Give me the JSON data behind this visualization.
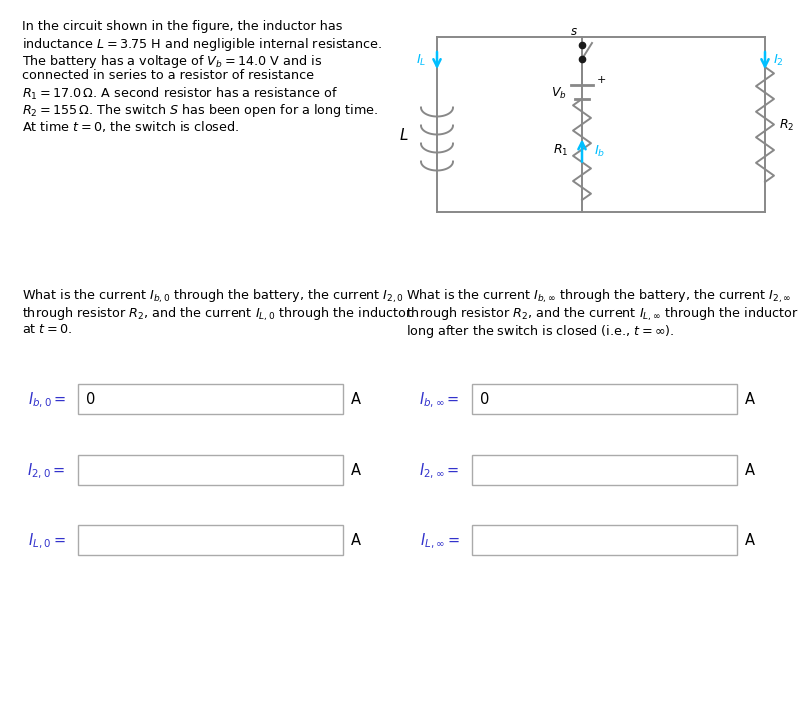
{
  "bg_color": "#ffffff",
  "problem_text_lines": [
    "In the circuit shown in the figure, the inductor has",
    "inductance $L = 3.75$ H and negligible internal resistance.",
    "The battery has a voltage of $V_b = 14.0$ V and is",
    "connected in series to a resistor of resistance",
    "$R_1 = 17.0\\,\\Omega$. A second resistor has a resistance of",
    "$R_2 = 155\\,\\Omega$. The switch $S$ has been open for a long time.",
    "At time $t = 0$, the switch is closed."
  ],
  "left_question_lines": [
    "What is the current $I_{b,0}$ through the battery, the current $I_{2,0}$",
    "through resistor $R_2$, and the current $I_{L,0}$ through the inductor",
    "at $t = 0$."
  ],
  "right_question_lines": [
    "What is the current $I_{b,\\infty}$ through the battery, the current $I_{2,\\infty}$",
    "through resistor $R_2$, and the current $I_{L,\\infty}$ through the inductor",
    "long after the switch is closed (i.e., $t = \\infty$)."
  ],
  "left_labels": [
    "$I_{b,0} =$",
    "$I_{2,0} =$",
    "$I_{L,0} =$"
  ],
  "right_labels": [
    "$I_{b,\\infty} =$",
    "$I_{2,\\infty} =$",
    "$I_{L,\\infty} =$"
  ],
  "left_prefilled": [
    "0",
    "",
    ""
  ],
  "right_prefilled": [
    "0",
    "",
    ""
  ],
  "unit": "A",
  "circuit_color": "#888888",
  "cyan_color": "#00BFFF",
  "text_color": "#000000",
  "label_color": "#3333cc"
}
